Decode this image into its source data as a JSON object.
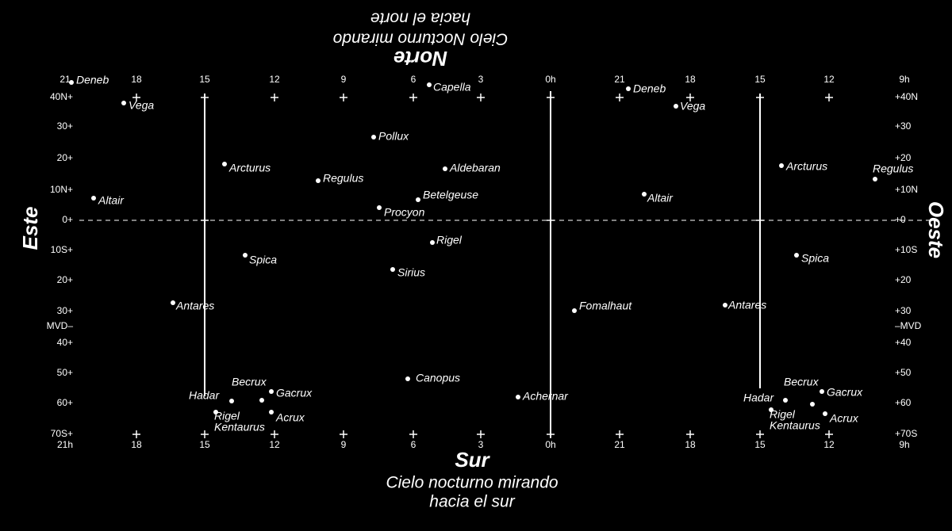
{
  "header": {
    "title": "Norte",
    "lines": [
      "Cielo Nocturno mirando",
      "hacia el norte"
    ]
  },
  "footer": {
    "title": "Sur",
    "lines": [
      "Cielo nocturno mirando",
      "hacia el sur"
    ]
  },
  "left_side": "Este",
  "right_side": "Oeste",
  "top_hours": [
    "21",
    "18",
    "15",
    "12",
    "9",
    "6",
    "3",
    "0h",
    "21",
    "18",
    "15",
    "12",
    "9h"
  ],
  "bottom_hours": [
    "21h",
    "18",
    "15",
    "12",
    "9",
    "6",
    "3",
    "0h",
    "21",
    "18",
    "15",
    "12",
    "9h"
  ],
  "left_declinations": [
    "40N+",
    "30+",
    "20+",
    "10N+",
    "0+",
    "10S+",
    "20+",
    "30+",
    "MVD–",
    "40+",
    "50+",
    "60+",
    "70S+"
  ],
  "right_declinations": [
    "+40N",
    "+30",
    "+20",
    "+10N",
    "+0",
    "+10S",
    "+20",
    "+30",
    "–MVD",
    "+40",
    "+50",
    "+60",
    "+70S"
  ],
  "stars": [
    [
      "Deneb"
    ],
    [
      "Vega"
    ],
    [
      "Capella"
    ],
    [
      "Deneb"
    ],
    [
      "Vega"
    ],
    [
      "Pollux"
    ],
    [
      "Arcturus"
    ],
    [
      "Regulus"
    ],
    [
      "Aldebaran"
    ],
    [
      "Arcturus"
    ],
    [
      "Regulus"
    ],
    [
      "Altair"
    ],
    [
      "Betelgeuse"
    ],
    [
      "Procyon"
    ],
    [
      "Altair"
    ],
    [
      "Rigel"
    ],
    [
      "Spica"
    ],
    [
      "Spica"
    ],
    [
      "Sirius"
    ],
    [
      "Antares"
    ],
    [
      "Fomalhaut"
    ],
    [
      "Antares"
    ],
    [
      "Canopus"
    ],
    [
      "Achernar"
    ],
    [
      "Becrux"
    ],
    [
      "Gacrux"
    ],
    [
      "Hadar"
    ],
    [
      "Rigel",
      "Kentaurus"
    ],
    [
      "Acrux"
    ],
    [
      "Becrux"
    ],
    [
      "Gacrux"
    ],
    [
      "Hadar"
    ],
    [
      "Rigel",
      "Kentaurus"
    ],
    [
      "Acrux"
    ]
  ]
}
